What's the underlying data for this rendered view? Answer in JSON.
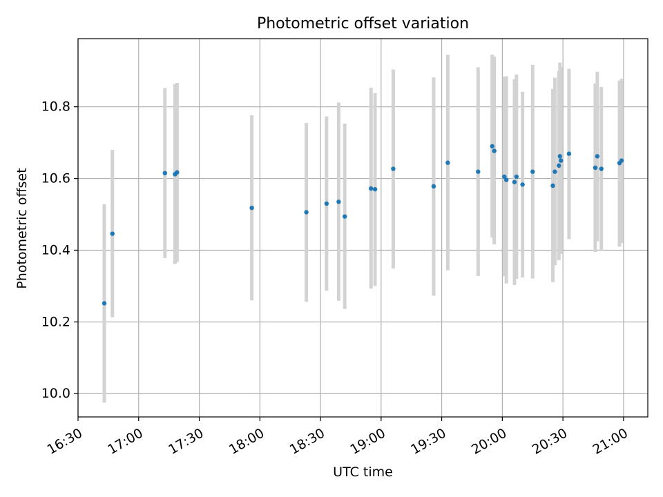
{
  "chart_data": {
    "type": "scatter",
    "title": "Photometric offset variation",
    "xlabel": "UTC time",
    "ylabel": "Photometric offset",
    "x_is_time": true,
    "xticks": [
      "16:30",
      "17:00",
      "17:30",
      "18:00",
      "18:30",
      "19:00",
      "19:30",
      "20:00",
      "20:30",
      "21:00"
    ],
    "yticks": [
      "10.0",
      "10.2",
      "10.4",
      "10.6",
      "10.8"
    ],
    "xlim": [
      "16:30",
      "21:12"
    ],
    "ylim": [
      9.935,
      10.99
    ],
    "grid": true,
    "colors": {
      "point": "#1f77b4",
      "error_bar": "#d3d3d3",
      "grid": "#b0b0b0"
    },
    "points": [
      {
        "time": "16:43",
        "y": 10.252,
        "err_low": 9.975,
        "err_high": 10.528
      },
      {
        "time": "16:47",
        "y": 10.446,
        "err_low": 10.213,
        "err_high": 10.68
      },
      {
        "time": "17:13",
        "y": 10.615,
        "err_low": 10.378,
        "err_high": 10.852
      },
      {
        "time": "17:18",
        "y": 10.612,
        "err_low": 10.362,
        "err_high": 10.863
      },
      {
        "time": "17:19",
        "y": 10.617,
        "err_low": 10.367,
        "err_high": 10.867
      },
      {
        "time": "17:56",
        "y": 10.518,
        "err_low": 10.26,
        "err_high": 10.776
      },
      {
        "time": "18:23",
        "y": 10.506,
        "err_low": 10.256,
        "err_high": 10.755
      },
      {
        "time": "18:33",
        "y": 10.53,
        "err_low": 10.287,
        "err_high": 10.773
      },
      {
        "time": "18:39",
        "y": 10.535,
        "err_low": 10.259,
        "err_high": 10.812
      },
      {
        "time": "18:42",
        "y": 10.494,
        "err_low": 10.236,
        "err_high": 10.753
      },
      {
        "time": "18:55",
        "y": 10.572,
        "err_low": 10.293,
        "err_high": 10.853
      },
      {
        "time": "18:57",
        "y": 10.57,
        "err_low": 10.3,
        "err_high": 10.838
      },
      {
        "time": "19:06",
        "y": 10.627,
        "err_low": 10.349,
        "err_high": 10.904
      },
      {
        "time": "19:26",
        "y": 10.578,
        "err_low": 10.273,
        "err_high": 10.882
      },
      {
        "time": "19:33",
        "y": 10.644,
        "err_low": 10.344,
        "err_high": 10.945
      },
      {
        "time": "19:48",
        "y": 10.619,
        "err_low": 10.328,
        "err_high": 10.91
      },
      {
        "time": "19:55",
        "y": 10.69,
        "err_low": 10.435,
        "err_high": 10.945
      },
      {
        "time": "19:56",
        "y": 10.677,
        "err_low": 10.416,
        "err_high": 10.94
      },
      {
        "time": "20:01",
        "y": 10.605,
        "err_low": 10.327,
        "err_high": 10.884
      },
      {
        "time": "20:02",
        "y": 10.596,
        "err_low": 10.307,
        "err_high": 10.885
      },
      {
        "time": "20:06",
        "y": 10.59,
        "err_low": 10.303,
        "err_high": 10.877
      },
      {
        "time": "20:07",
        "y": 10.605,
        "err_low": 10.32,
        "err_high": 10.89
      },
      {
        "time": "20:10",
        "y": 10.583,
        "err_low": 10.324,
        "err_high": 10.842
      },
      {
        "time": "20:15",
        "y": 10.619,
        "err_low": 10.321,
        "err_high": 10.917
      },
      {
        "time": "20:25",
        "y": 10.58,
        "err_low": 10.311,
        "err_high": 10.85
      },
      {
        "time": "20:26",
        "y": 10.619,
        "err_low": 10.358,
        "err_high": 10.881
      },
      {
        "time": "20:28",
        "y": 10.636,
        "err_low": 10.372,
        "err_high": 10.9
      },
      {
        "time": "20:28:30",
        "y": 10.662,
        "err_low": 10.395,
        "err_high": 10.923
      },
      {
        "time": "20:29",
        "y": 10.65,
        "err_low": 10.39,
        "err_high": 10.91
      },
      {
        "time": "20:33",
        "y": 10.669,
        "err_low": 10.431,
        "err_high": 10.906
      },
      {
        "time": "20:46",
        "y": 10.63,
        "err_low": 10.395,
        "err_high": 10.865
      },
      {
        "time": "20:47",
        "y": 10.662,
        "err_low": 10.425,
        "err_high": 10.898
      },
      {
        "time": "20:49",
        "y": 10.627,
        "err_low": 10.4,
        "err_high": 10.855
      },
      {
        "time": "20:58",
        "y": 10.643,
        "err_low": 10.41,
        "err_high": 10.873
      },
      {
        "time": "20:59",
        "y": 10.65,
        "err_low": 10.42,
        "err_high": 10.878
      }
    ]
  }
}
